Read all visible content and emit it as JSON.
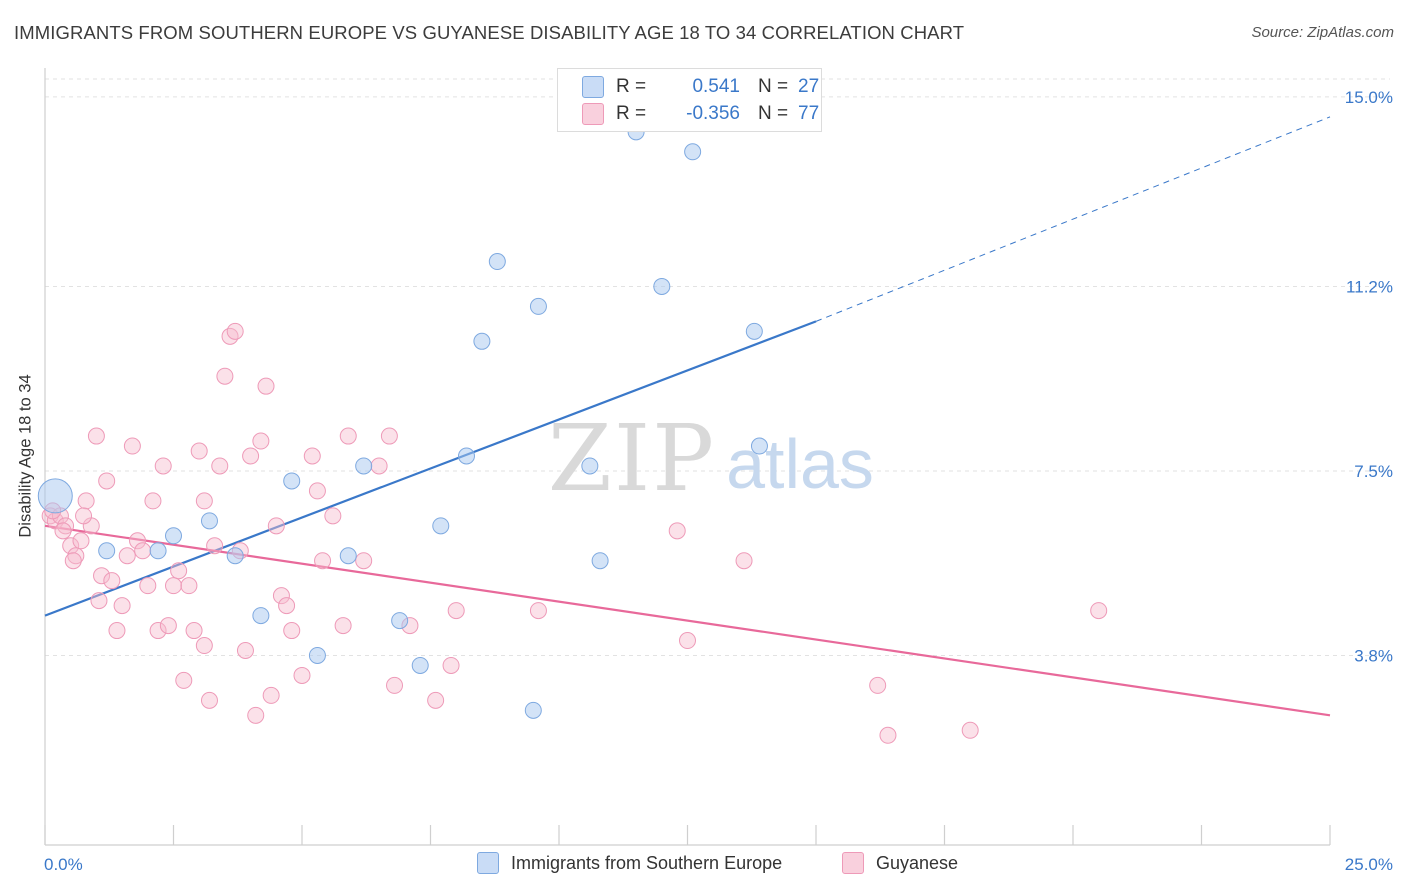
{
  "title": "IMMIGRANTS FROM SOUTHERN EUROPE VS GUYANESE DISABILITY AGE 18 TO 34 CORRELATION CHART",
  "source": "Source: ZipAtlas.com",
  "watermark": {
    "zip": "ZIP",
    "atlas": "atlas"
  },
  "legend": {
    "rows": [
      {
        "r_label": "R =",
        "r_value": "0.541",
        "n_label": "N =",
        "n_value": "27",
        "color": "#a8c8f0"
      },
      {
        "r_label": "R =",
        "r_value": "-0.356",
        "n_label": "N =",
        "n_value": "77",
        "color": "#f6bccf"
      }
    ]
  },
  "bottom_legend": {
    "series1": "Immigrants from Southern Europe",
    "series2": "Guyanese"
  },
  "chart_data": {
    "type": "scatter",
    "ylabel": "Disability Age 18 to 34",
    "xlabel": "",
    "xlim": [
      0,
      25
    ],
    "ylim": [
      0,
      15.5
    ],
    "x_tick_labels": [
      {
        "value": 0,
        "label": "0.0%"
      },
      {
        "value": 25,
        "label": "25.0%"
      }
    ],
    "y_tick_labels": [
      {
        "value": 3.8,
        "label": "3.8%"
      },
      {
        "value": 7.5,
        "label": "7.5%"
      },
      {
        "value": 11.2,
        "label": "11.2%"
      },
      {
        "value": 15.0,
        "label": "15.0%"
      }
    ],
    "grid": "horizontal dashed",
    "legend_position": "top-center",
    "colors": {
      "blue": "#3a78c9",
      "blue_fill": "#a8c8f0",
      "pink": "#e8699a",
      "pink_fill": "#f6bccf",
      "tick_text": "#3a78c9"
    },
    "series": [
      {
        "name": "Immigrants from Southern Europe",
        "color": "#3a78c9",
        "points": [
          [
            0.2,
            7.0
          ],
          [
            1.2,
            5.9
          ],
          [
            2.2,
            5.9
          ],
          [
            2.5,
            6.2
          ],
          [
            3.2,
            6.5
          ],
          [
            3.7,
            5.8
          ],
          [
            4.2,
            4.6
          ],
          [
            4.8,
            7.3
          ],
          [
            5.3,
            3.8
          ],
          [
            5.9,
            5.8
          ],
          [
            6.2,
            7.6
          ],
          [
            6.9,
            4.5
          ],
          [
            7.3,
            3.6
          ],
          [
            7.7,
            6.4
          ],
          [
            8.2,
            7.8
          ],
          [
            8.8,
            11.7
          ],
          [
            9.5,
            2.7
          ],
          [
            9.6,
            10.8
          ],
          [
            10.6,
            7.6
          ],
          [
            10.8,
            5.7
          ],
          [
            11.5,
            14.3
          ],
          [
            12.0,
            11.2
          ],
          [
            12.6,
            13.9
          ],
          [
            13.8,
            10.3
          ],
          [
            13.9,
            8.0
          ],
          [
            11.8,
            15.1
          ],
          [
            8.5,
            10.1
          ]
        ],
        "trend": {
          "x": [
            0,
            15
          ],
          "y": [
            4.6,
            10.5
          ],
          "dashed_extension": {
            "x": [
              15,
              25
            ],
            "y": [
              10.5,
              14.6
            ]
          }
        }
      },
      {
        "name": "Guyanese",
        "color": "#e8699a",
        "points": [
          [
            0.1,
            6.6
          ],
          [
            0.2,
            6.5
          ],
          [
            0.3,
            6.6
          ],
          [
            0.4,
            6.4
          ],
          [
            0.5,
            6.0
          ],
          [
            0.6,
            5.8
          ],
          [
            0.7,
            6.1
          ],
          [
            0.8,
            6.9
          ],
          [
            0.9,
            6.4
          ],
          [
            1.0,
            8.2
          ],
          [
            1.1,
            5.4
          ],
          [
            1.2,
            7.3
          ],
          [
            1.3,
            5.3
          ],
          [
            1.4,
            4.3
          ],
          [
            1.5,
            4.8
          ],
          [
            1.6,
            5.8
          ],
          [
            1.7,
            8.0
          ],
          [
            1.8,
            6.1
          ],
          [
            1.9,
            5.9
          ],
          [
            2.0,
            5.2
          ],
          [
            2.1,
            6.9
          ],
          [
            2.2,
            4.3
          ],
          [
            2.3,
            7.6
          ],
          [
            2.4,
            4.4
          ],
          [
            2.5,
            5.2
          ],
          [
            2.6,
            5.5
          ],
          [
            2.7,
            3.3
          ],
          [
            2.8,
            5.2
          ],
          [
            2.9,
            4.3
          ],
          [
            3.0,
            7.9
          ],
          [
            3.1,
            6.9
          ],
          [
            3.1,
            4.0
          ],
          [
            3.2,
            2.9
          ],
          [
            3.3,
            6.0
          ],
          [
            3.4,
            7.6
          ],
          [
            3.5,
            9.4
          ],
          [
            3.6,
            10.2
          ],
          [
            3.7,
            10.3
          ],
          [
            3.8,
            5.9
          ],
          [
            3.9,
            3.9
          ],
          [
            4.0,
            7.8
          ],
          [
            4.1,
            2.6
          ],
          [
            4.2,
            8.1
          ],
          [
            4.3,
            9.2
          ],
          [
            4.4,
            3.0
          ],
          [
            4.5,
            6.4
          ],
          [
            4.6,
            5.0
          ],
          [
            4.7,
            4.8
          ],
          [
            4.8,
            4.3
          ],
          [
            5.0,
            3.4
          ],
          [
            5.2,
            7.8
          ],
          [
            5.3,
            7.1
          ],
          [
            5.4,
            5.7
          ],
          [
            5.6,
            6.6
          ],
          [
            5.8,
            4.4
          ],
          [
            5.9,
            8.2
          ],
          [
            6.2,
            5.7
          ],
          [
            6.5,
            7.6
          ],
          [
            6.7,
            8.2
          ],
          [
            6.8,
            3.2
          ],
          [
            7.1,
            4.4
          ],
          [
            7.6,
            2.9
          ],
          [
            7.9,
            3.6
          ],
          [
            8.0,
            4.7
          ],
          [
            9.6,
            4.7
          ],
          [
            12.3,
            6.3
          ],
          [
            12.5,
            4.1
          ],
          [
            13.6,
            5.7
          ],
          [
            16.2,
            3.2
          ],
          [
            16.4,
            2.2
          ],
          [
            18.0,
            2.3
          ],
          [
            20.5,
            4.7
          ],
          [
            0.15,
            6.7
          ],
          [
            0.35,
            6.3
          ],
          [
            0.55,
            5.7
          ],
          [
            0.75,
            6.6
          ],
          [
            1.05,
            4.9
          ]
        ],
        "trend": {
          "x": [
            0,
            25
          ],
          "y": [
            6.4,
            2.6
          ]
        }
      }
    ]
  }
}
